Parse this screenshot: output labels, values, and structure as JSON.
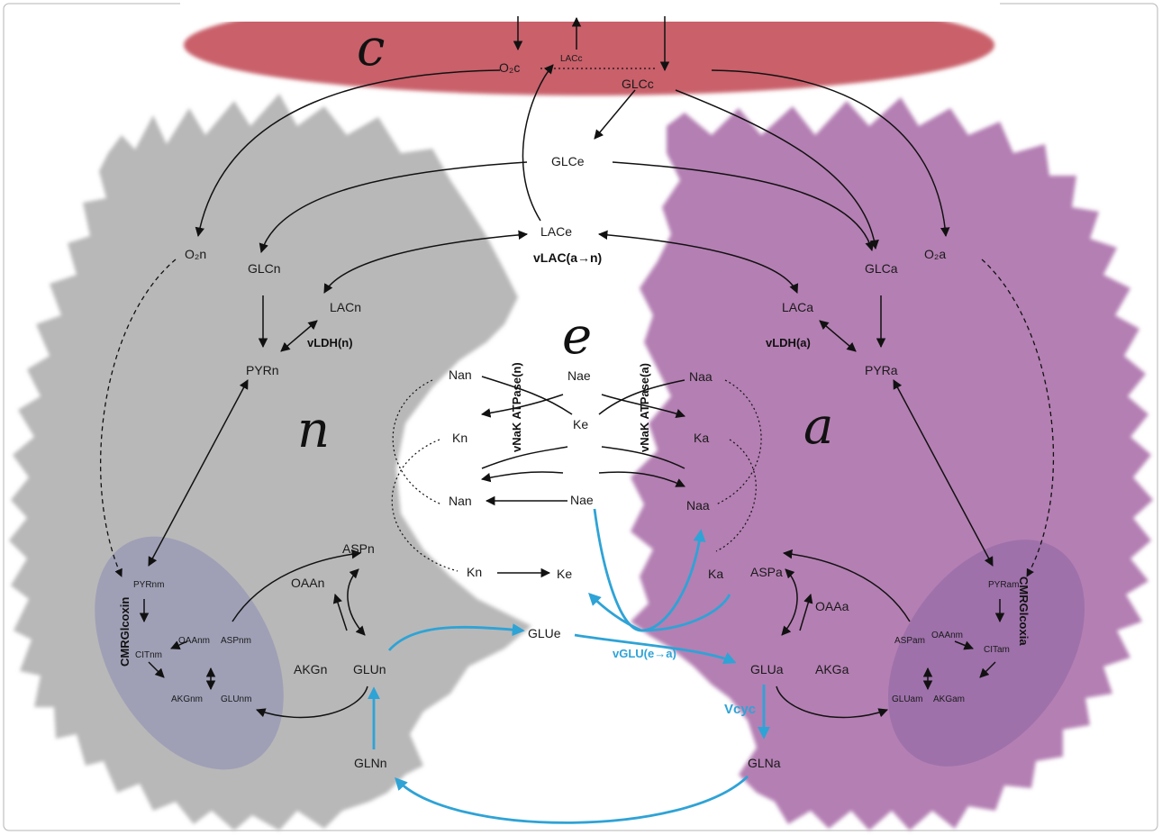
{
  "compartments": {
    "capillary": "c",
    "extracellular": "e",
    "neuron": "n",
    "astrocyte": "a"
  },
  "capillary_nodes": {
    "o2": "O₂c",
    "lac": "LACc",
    "glc": "GLCc"
  },
  "extracellular_nodes": {
    "glc": "GLCe",
    "lac": "LACe",
    "na_top": "Nae",
    "k": "Ke",
    "na_mid": "Nae",
    "k_bottom": "Ke",
    "glu": "GLUe"
  },
  "neuron_nodes": {
    "o2": "O₂n",
    "glc": "GLCn",
    "lac": "LACn",
    "pyr": "PYRn",
    "na_top": "Nan",
    "k_top": "Kn",
    "na_mid": "Nan",
    "k_bottom": "Kn",
    "asp": "ASPn",
    "oaa": "OAAn",
    "akg": "AKGn",
    "glu": "GLUn",
    "gln": "GLNn",
    "pyr_m": "PYRnm",
    "cit_m": "CITnm",
    "oaa_m": "OAAnm",
    "asp_m": "ASPnm",
    "akg_m": "AKGnm",
    "glu_m": "GLUnm"
  },
  "astrocyte_nodes": {
    "o2": "O₂a",
    "glc": "GLCa",
    "lac": "LACa",
    "pyr": "PYRa",
    "na_top": "Naa",
    "k_top": "Ka",
    "na_mid": "Naa",
    "k_bottom": "Ka",
    "asp": "ASPa",
    "oaa": "OAAa",
    "akg": "AKGa",
    "glu": "GLUa",
    "gln": "GLNa",
    "pyr_m": "PYRam",
    "cit_m": "CITam",
    "oaa_m": "OAAnm",
    "asp_m": "ASPam",
    "akg_m": "AKGam",
    "glu_m": "GLUam"
  },
  "fluxes": {
    "vlac": "vLAC(a→n)",
    "vldh_n": "vLDH(n)",
    "vldh_a": "vLDH(a)",
    "vnak_n": "vNaK ATPase(n)",
    "vnak_a": "vNaK ATPase(a)",
    "cmr_n": "CMRGlcoxin",
    "cmr_a": "CMRGlcoxia",
    "vglu": "vGLU(e→a)",
    "vcyc": "Vcyc"
  },
  "colors": {
    "capillary": "#c9606b",
    "neuron": "#b8b8b8",
    "astrocyte": "#b47fb3",
    "neuron_mito": "#9a9bb5",
    "astro_mito": "#9a6ea8",
    "glutamate_cycle": "#2ea3d6"
  }
}
